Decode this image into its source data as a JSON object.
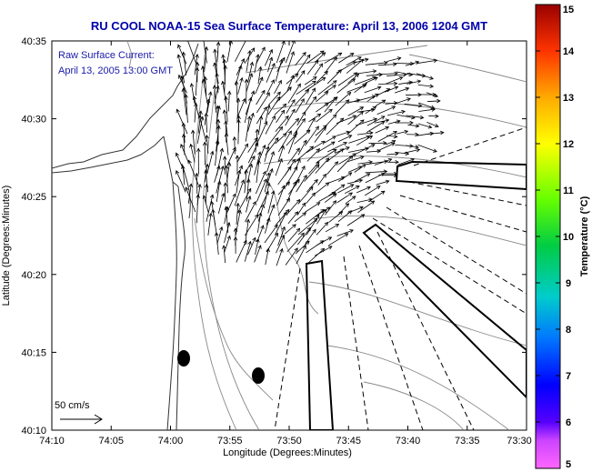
{
  "title": "RU COOL  NOAA-15  Sea Surface Temperature:  April 13, 2006 1204 GMT",
  "annotation": {
    "line1": "Raw Surface Current:",
    "line2": "April 13, 2005 13:00 GMT"
  },
  "x_axis": {
    "label": "Longitude (Degrees:Minutes)",
    "ticks": [
      "74:10",
      "74:05",
      "74:00",
      "73:55",
      "73:50",
      "73:45",
      "73:40",
      "73:35",
      "73:30"
    ]
  },
  "y_axis": {
    "label": "Latitude (Degrees:Minutes)",
    "ticks": [
      "40:10",
      "40:15",
      "40:20",
      "40:25",
      "40:30",
      "40:35"
    ]
  },
  "scale_arrow_label": "50 cm/s",
  "colorbar": {
    "label": "Temperature (°C)",
    "ticks": [
      "5",
      "6",
      "7",
      "8",
      "9",
      "10",
      "11",
      "12",
      "13",
      "14",
      "15"
    ],
    "colors": [
      "#ff66ff",
      "#8800ff",
      "#0000ff",
      "#0077ff",
      "#00cccc",
      "#00cc44",
      "#66ff00",
      "#ffff00",
      "#ffaa00",
      "#ff3300",
      "#aa0000"
    ]
  }
}
